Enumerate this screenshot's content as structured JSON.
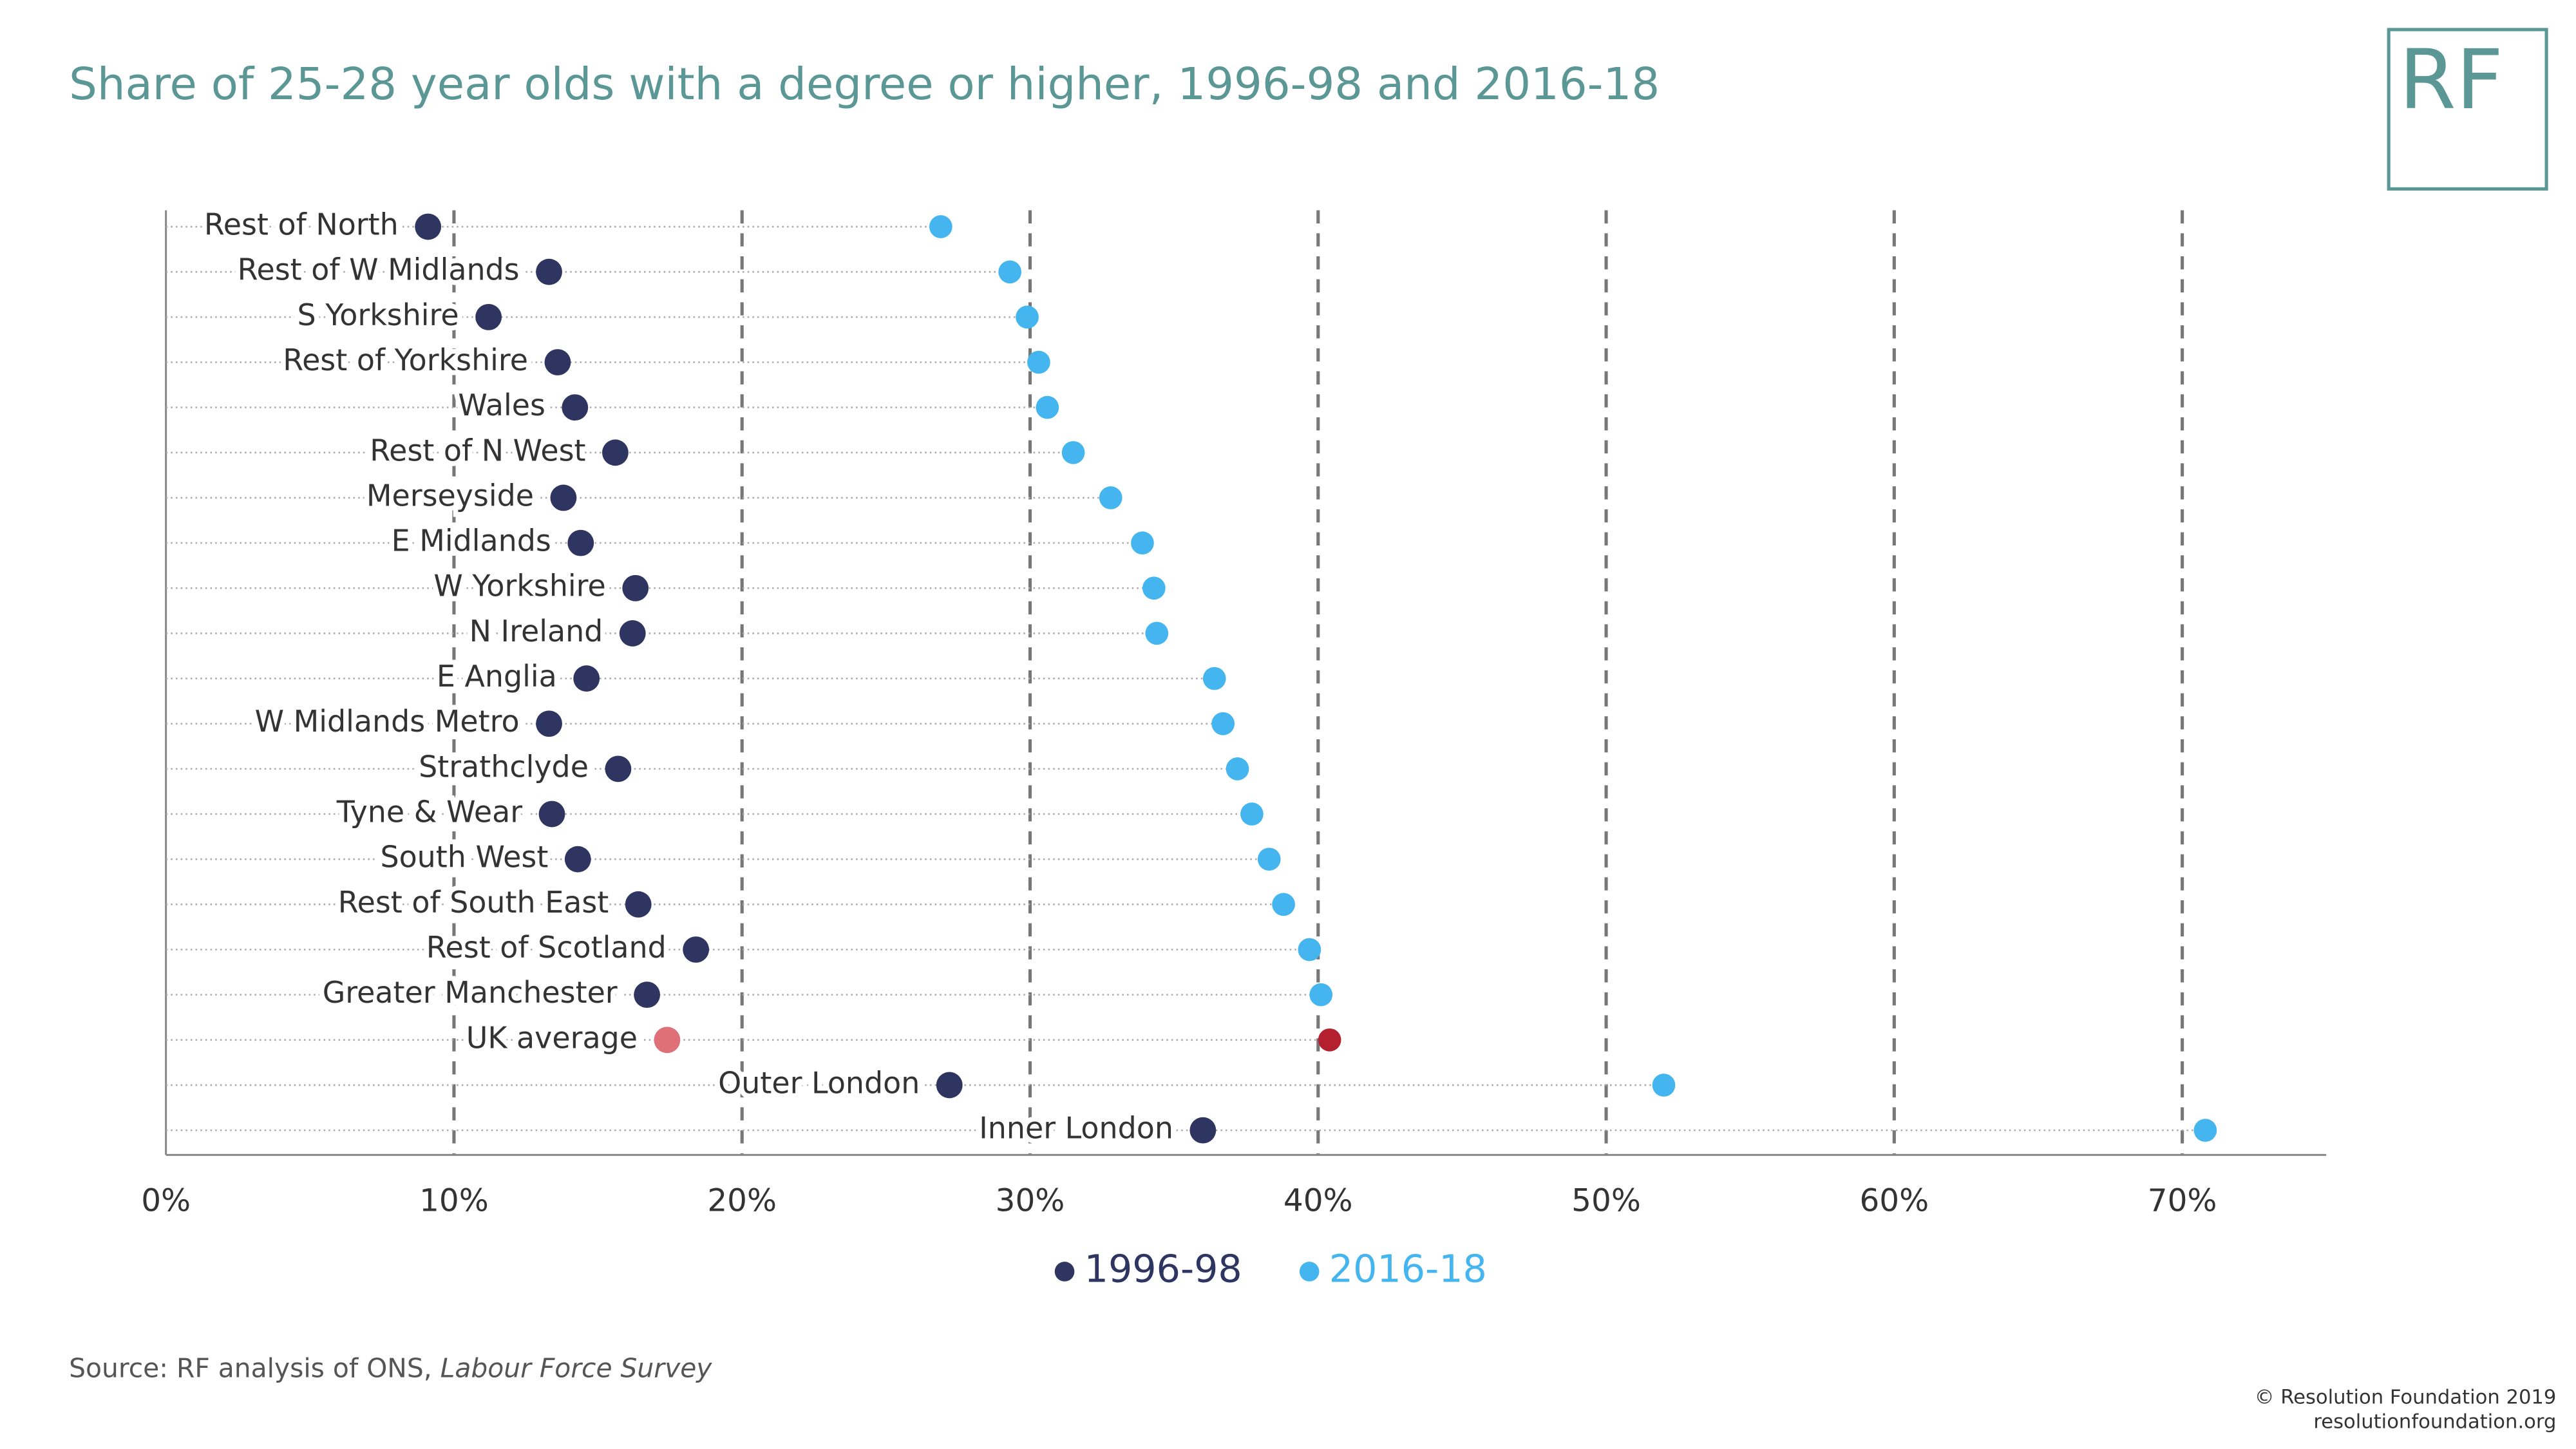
{
  "chart_data": {
    "type": "dot",
    "title": "Share of 25-28 year olds with a degree or higher, 1996-98 and 2016-18",
    "categories": [
      "Rest of North",
      "Rest of W Midlands",
      "S Yorkshire",
      "Rest of Yorkshire",
      "Wales",
      "Rest of N West",
      "Merseyside",
      "E Midlands",
      "W Yorkshire",
      "N Ireland",
      "E Anglia",
      "W Midlands Metro",
      "Strathclyde",
      "Tyne & Wear",
      "South West",
      "Rest of South East",
      "Rest of Scotland",
      "Greater Manchester",
      "UK average",
      "Outer London",
      "Inner London"
    ],
    "series": [
      {
        "name": "1996-98",
        "color": "#2e3560",
        "highlight_color": "#e07078",
        "values": [
          9.1,
          13.3,
          11.2,
          13.6,
          14.2,
          15.6,
          13.8,
          14.4,
          16.3,
          16.2,
          14.6,
          13.3,
          15.7,
          13.4,
          14.3,
          16.4,
          18.4,
          16.7,
          17.4,
          27.2,
          36.0
        ]
      },
      {
        "name": "2016-18",
        "color": "#45b5f0",
        "highlight_color": "#b5202e",
        "values": [
          26.9,
          29.3,
          29.9,
          30.3,
          30.6,
          31.5,
          32.8,
          33.9,
          34.3,
          34.4,
          36.4,
          36.7,
          37.2,
          37.7,
          38.3,
          38.8,
          39.7,
          40.1,
          40.4,
          52.0,
          70.8
        ]
      }
    ],
    "highlight_index": 18,
    "xlim": [
      0,
      75
    ],
    "xticks": [
      {
        "value": 0,
        "label": "0%"
      },
      {
        "value": 10,
        "label": "10%"
      },
      {
        "value": 20,
        "label": "20%"
      },
      {
        "value": 30,
        "label": "30%"
      },
      {
        "value": 40,
        "label": "40%"
      },
      {
        "value": 50,
        "label": "50%"
      },
      {
        "value": 60,
        "label": "60%"
      },
      {
        "value": 70,
        "label": "70%"
      }
    ],
    "grid": true
  },
  "logo": "RF",
  "footer": {
    "source": "Source: RF analysis of ONS,",
    "source_italic": "Labour Force Survey",
    "copyright": "© Resolution Foundation 2019",
    "website": "resolutionfoundation.org"
  }
}
